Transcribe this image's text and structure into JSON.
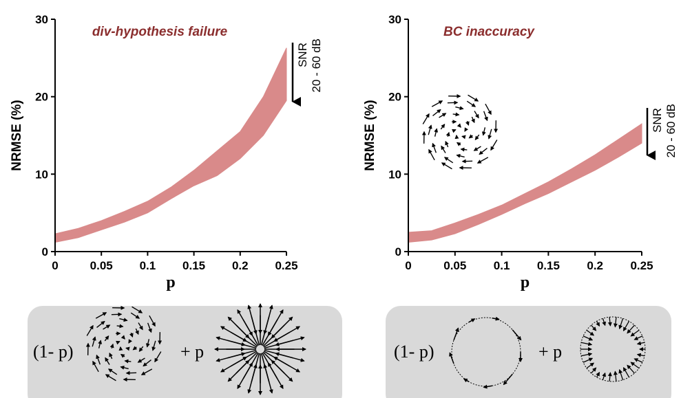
{
  "chart_data": [
    {
      "type": "band",
      "title": "div-hypothesis failure",
      "xlabel": "p",
      "ylabel": "NRMSE (%)",
      "x": [
        0,
        0.025,
        0.05,
        0.075,
        0.1,
        0.125,
        0.15,
        0.175,
        0.2,
        0.225,
        0.25
      ],
      "upper": [
        2.3,
        3,
        4,
        5.2,
        6.5,
        8.3,
        10.5,
        13,
        15.5,
        20,
        26.3
      ],
      "lower": [
        1.2,
        1.8,
        2.8,
        3.8,
        5,
        6.8,
        8.5,
        9.8,
        12,
        15,
        19.5
      ],
      "color": "#d98a8a",
      "xlim": [
        0,
        0.25
      ],
      "xticks": [
        0,
        0.05,
        0.1,
        0.15,
        0.2,
        0.25
      ],
      "ylim": [
        0,
        30
      ],
      "yticks": [
        0,
        10,
        20,
        30
      ],
      "annotations": [
        "SNR",
        "20 - 60 dB"
      ],
      "formula_labels": [
        "(1- p)",
        "+ p"
      ]
    },
    {
      "type": "band",
      "title": "BC inaccuracy",
      "xlabel": "p",
      "ylabel": "NRMSE (%)",
      "x": [
        0,
        0.025,
        0.05,
        0.075,
        0.1,
        0.125,
        0.15,
        0.175,
        0.2,
        0.225,
        0.25
      ],
      "upper": [
        2.5,
        2.7,
        3.7,
        4.8,
        6,
        7.5,
        9,
        10.7,
        12.5,
        14.5,
        16.5
      ],
      "lower": [
        1.2,
        1.5,
        2.3,
        3.5,
        4.8,
        6.2,
        7.5,
        9,
        10.5,
        12.2,
        14
      ],
      "color": "#d98a8a",
      "xlim": [
        0,
        0.25
      ],
      "xticks": [
        0,
        0.05,
        0.1,
        0.15,
        0.2,
        0.25
      ],
      "ylim": [
        0,
        30
      ],
      "yticks": [
        0,
        10,
        20,
        30
      ],
      "annotations": [
        "SNR",
        "20 - 60 dB"
      ],
      "formula_labels": [
        "(1- p)",
        "+ p"
      ]
    }
  ]
}
